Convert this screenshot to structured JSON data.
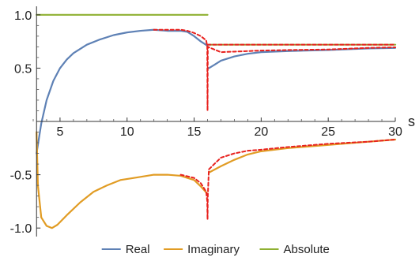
{
  "chart_data": {
    "type": "line",
    "title": "",
    "xlabel": "s",
    "ylabel": "",
    "xlim": [
      3,
      30
    ],
    "ylim": [
      -1.08,
      1.08
    ],
    "x_axis_crosses_y": 0,
    "y_axis_at_x": 3.25,
    "x_ticks": [
      5,
      10,
      15,
      20,
      25,
      30
    ],
    "y_ticks": [
      -1.0,
      -0.5,
      0.5,
      1.0
    ],
    "x_tick_labels": [
      "5",
      "10",
      "15",
      "20",
      "25",
      "30"
    ],
    "y_tick_labels": [
      "-1.0",
      "-0.5",
      "0.5",
      "1.0"
    ],
    "grid": false,
    "legend_position": "bottom",
    "series": [
      {
        "name": "Real",
        "color": "#5E81B5",
        "segments": [
          [
            [
              3.25,
              -0.3
            ],
            [
              3.6,
              -0.02
            ],
            [
              4.0,
              0.2
            ],
            [
              4.5,
              0.38
            ],
            [
              5.0,
              0.5
            ],
            [
              5.5,
              0.58
            ],
            [
              6.0,
              0.64
            ],
            [
              7.0,
              0.72
            ],
            [
              8.0,
              0.77
            ],
            [
              9.0,
              0.81
            ],
            [
              10.0,
              0.835
            ],
            [
              11.0,
              0.85
            ],
            [
              12.0,
              0.86
            ],
            [
              12.5,
              0.855
            ],
            [
              13.0,
              0.85
            ],
            [
              14.0,
              0.85
            ],
            [
              14.5,
              0.84
            ],
            [
              15.0,
              0.8
            ],
            [
              15.5,
              0.75
            ],
            [
              16.0,
              0.71
            ]
          ],
          [
            [
              16.1,
              0.5
            ],
            [
              16.5,
              0.53
            ],
            [
              17.0,
              0.57
            ],
            [
              18.0,
              0.61
            ],
            [
              19.0,
              0.635
            ],
            [
              20.0,
              0.65
            ],
            [
              22.0,
              0.66
            ],
            [
              25.0,
              0.67
            ],
            [
              28.0,
              0.685
            ],
            [
              30.0,
              0.69
            ]
          ]
        ]
      },
      {
        "name": "Imaginary",
        "color": "#E19C24",
        "segments": [
          [
            [
              3.25,
              -0.1
            ],
            [
              3.35,
              -0.6
            ],
            [
              3.6,
              -0.9
            ],
            [
              4.0,
              -0.98
            ],
            [
              4.4,
              -1.0
            ],
            [
              4.8,
              -0.97
            ],
            [
              5.5,
              -0.88
            ],
            [
              6.5,
              -0.76
            ],
            [
              7.5,
              -0.66
            ],
            [
              8.5,
              -0.6
            ],
            [
              9.5,
              -0.55
            ],
            [
              10.5,
              -0.53
            ],
            [
              11.5,
              -0.51
            ],
            [
              12.0,
              -0.5
            ],
            [
              13.0,
              -0.5
            ],
            [
              14.0,
              -0.51
            ],
            [
              15.0,
              -0.55
            ],
            [
              15.5,
              -0.61
            ],
            [
              16.0,
              -0.68
            ]
          ],
          [
            [
              16.1,
              -0.48
            ],
            [
              17.0,
              -0.42
            ],
            [
              18.0,
              -0.36
            ],
            [
              19.0,
              -0.31
            ],
            [
              20.0,
              -0.28
            ],
            [
              22.0,
              -0.25
            ],
            [
              25.0,
              -0.22
            ],
            [
              27.0,
              -0.2
            ],
            [
              30.0,
              -0.17
            ]
          ]
        ]
      },
      {
        "name": "Absolute",
        "color": "#8FB032",
        "segments": [
          [
            [
              3.25,
              1.0
            ],
            [
              16.0,
              1.0
            ]
          ],
          [
            [
              16.1,
              0.72
            ],
            [
              30.0,
              0.72
            ]
          ]
        ]
      },
      {
        "name": "",
        "color": "#E8211E",
        "dashed": true,
        "segments": [
          [
            [
              12.0,
              0.86
            ],
            [
              13.0,
              0.86
            ],
            [
              14.0,
              0.86
            ],
            [
              14.5,
              0.85
            ],
            [
              15.0,
              0.83
            ],
            [
              15.5,
              0.8
            ],
            [
              15.9,
              0.76
            ],
            [
              15.98,
              0.7
            ],
            [
              16.0,
              0.1
            ],
            [
              16.02,
              0.7
            ],
            [
              16.2,
              0.69
            ],
            [
              17.0,
              0.65
            ],
            [
              18.0,
              0.655
            ],
            [
              19.0,
              0.66
            ],
            [
              20.0,
              0.665
            ],
            [
              22.0,
              0.67
            ],
            [
              25.0,
              0.675
            ],
            [
              28.0,
              0.69
            ],
            [
              30.0,
              0.695
            ]
          ],
          [
            [
              14.0,
              -0.5
            ],
            [
              15.0,
              -0.53
            ],
            [
              15.5,
              -0.58
            ],
            [
              15.9,
              -0.66
            ],
            [
              15.98,
              -0.75
            ],
            [
              16.0,
              -0.92
            ],
            [
              16.02,
              -0.7
            ],
            [
              16.1,
              -0.45
            ],
            [
              16.5,
              -0.4
            ],
            [
              17.0,
              -0.34
            ],
            [
              18.0,
              -0.3
            ],
            [
              19.0,
              -0.275
            ],
            [
              20.0,
              -0.265
            ],
            [
              22.0,
              -0.24
            ],
            [
              25.0,
              -0.21
            ],
            [
              28.0,
              -0.19
            ],
            [
              30.0,
              -0.17
            ]
          ],
          [
            [
              16.0,
              0.72
            ],
            [
              30.0,
              0.72
            ]
          ]
        ]
      }
    ]
  }
}
